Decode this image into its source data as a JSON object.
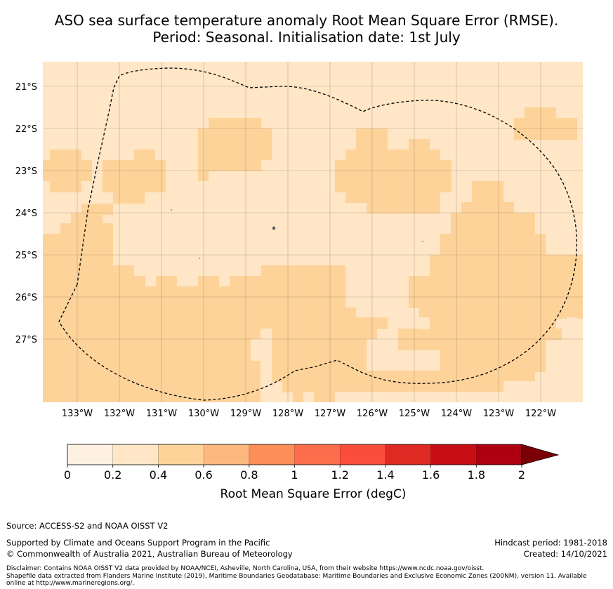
{
  "title": {
    "line1": "ASO sea surface temperature anomaly Root Mean Square Error (RMSE).",
    "line2": "Period: Seasonal. Initialisation date: 1st July"
  },
  "map": {
    "lon_ticks": [
      "133°W",
      "132°W",
      "131°W",
      "130°W",
      "129°W",
      "128°W",
      "127°W",
      "126°W",
      "125°W",
      "124°W",
      "123°W",
      "122°W"
    ],
    "lat_ticks": [
      "21°S",
      "22°S",
      "23°S",
      "24°S",
      "25°S",
      "26°S",
      "27°S"
    ],
    "colors": {
      "band_0_2_0_4": "#fee6c6",
      "band_0_4_0_6": "#fdd39a",
      "eez_boundary": "#000000"
    }
  },
  "colorbar": {
    "tick_labels": [
      "0",
      "0.2",
      "0.4",
      "0.6",
      "0.8",
      "1",
      "1.2",
      "1.4",
      "1.6",
      "1.8",
      "2"
    ],
    "colors": [
      "#fff1e2",
      "#fee6c6",
      "#fdd39a",
      "#fdb87f",
      "#fc8e58",
      "#fc6d4b",
      "#fb4d3c",
      "#de2a23",
      "#c80e15",
      "#ad0011"
    ],
    "extend_color": "#7a0006",
    "label": "Root Mean Square Error (degC)"
  },
  "footer": {
    "source": "Source: ACCESS-S2 and NOAA OISST V2",
    "supported": "Supported by Climate and Oceans Support Program in the Pacific",
    "copyright": "© Commonwealth of Australia 2021, Australian Bureau of Meteorology",
    "hindcast": "Hindcast period: 1981-2018",
    "created": "Created: 14/10/2021",
    "disclaimer_1": "Disclaimer: Contains NOAA OISST V2 data provided by NOAA/NCEI, Asheville, North Carolina, USA, from their website https://www.ncdc.noaa.gov/oisst.",
    "disclaimer_2": "Shapefile data extracted from Flanders Marine Institute (2019), Maritime Boundaries Geodatabase: Maritime Boundaries and Exclusive Economic Zones (200NM), version 11. Available",
    "disclaimer_3": "online at http://www.marineregions.org/."
  }
}
